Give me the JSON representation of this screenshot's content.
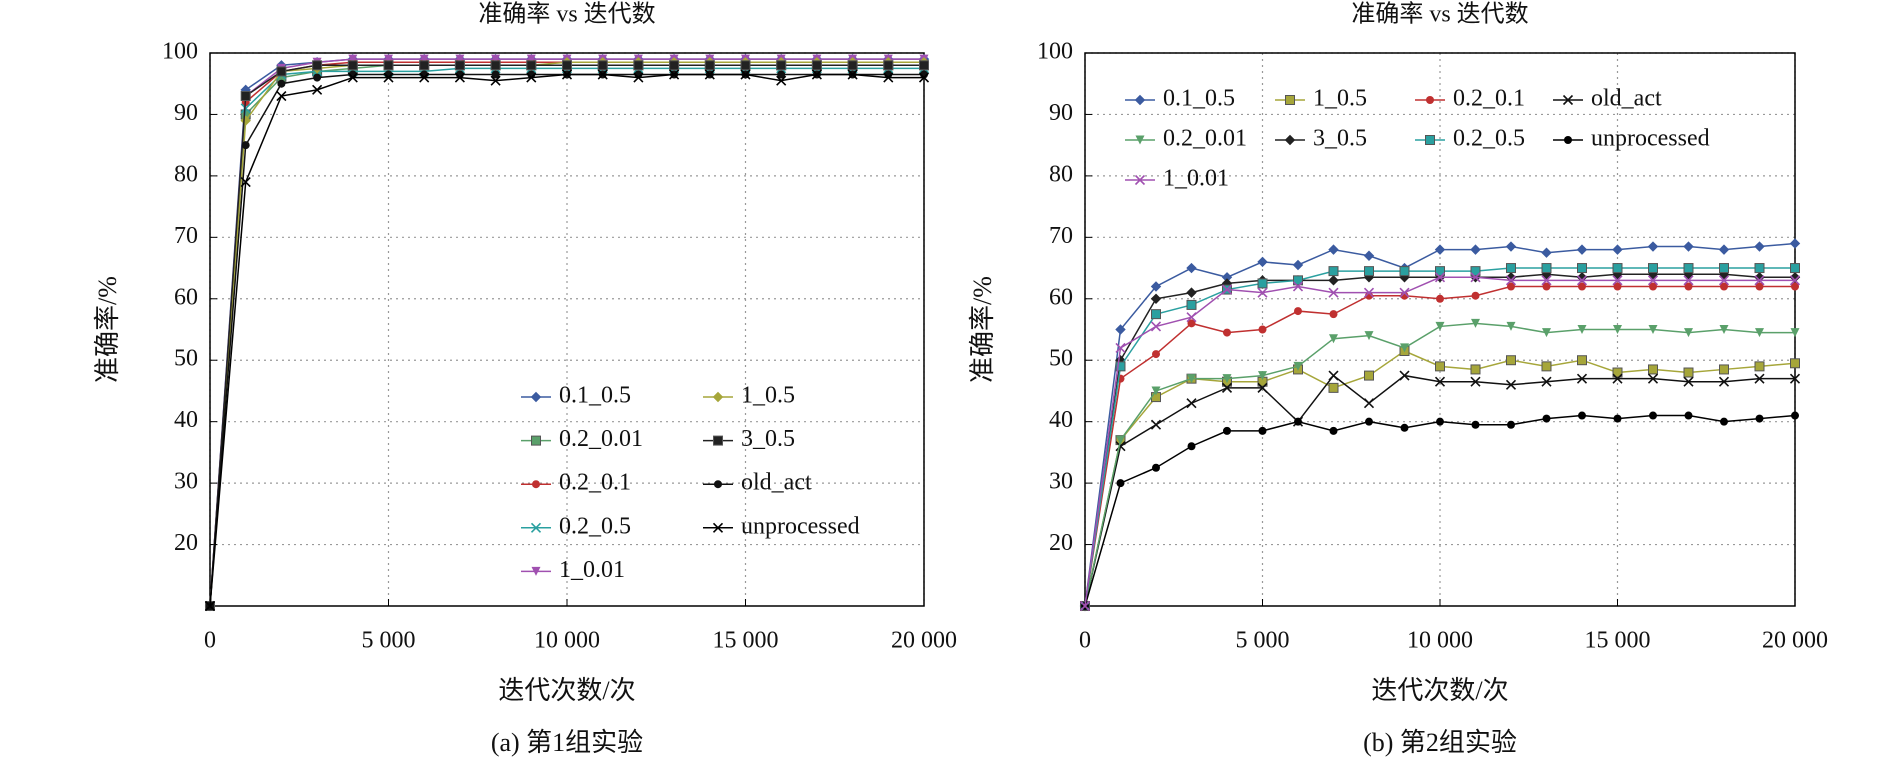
{
  "chart_data": [
    {
      "type": "line",
      "title": "准确率 vs 迭代数",
      "xlabel": "迭代次数/次",
      "ylabel": "准确率/%",
      "caption": "(a) 第1组实验",
      "x": [
        0,
        1000,
        2000,
        3000,
        4000,
        5000,
        6000,
        7000,
        8000,
        9000,
        10000,
        11000,
        12000,
        13000,
        14000,
        15000,
        16000,
        17000,
        18000,
        19000,
        20000
      ],
      "xlim": [
        0,
        20000
      ],
      "ylim": [
        10,
        100
      ],
      "xticks": [
        0,
        {
          "value": 5000,
          "label": "5 000"
        },
        {
          "value": 10000,
          "label": "10 000"
        },
        {
          "value": 15000,
          "label": "15 000"
        },
        {
          "value": 20000,
          "label": "20 000"
        }
      ],
      "yticks": [
        20,
        30,
        40,
        50,
        60,
        70,
        80,
        90,
        100
      ],
      "grid": true,
      "legend_loc": "lower right",
      "series": [
        {
          "name": "0.1_0.5",
          "color": "#3b5ba0",
          "values": [
            10,
            94,
            98,
            98.5,
            99,
            99,
            99,
            99,
            99,
            99,
            99,
            99,
            99,
            99,
            99,
            99,
            99,
            99,
            99,
            99,
            99
          ]
        },
        {
          "name": "0.2_0.01",
          "color": "#5aa06a",
          "values": [
            10,
            90,
            96,
            97,
            97.5,
            98,
            98,
            98,
            98,
            98,
            98,
            98,
            98,
            98,
            98,
            98,
            98,
            98,
            98,
            98,
            98
          ]
        },
        {
          "name": "0.2_0.1",
          "color": "#c03030",
          "values": [
            10,
            92,
            97,
            98,
            98.5,
            98.5,
            98.5,
            98.5,
            98.5,
            98.5,
            98.5,
            98.5,
            98.5,
            98.5,
            98.5,
            98.5,
            98.5,
            98.5,
            98.5,
            98.5,
            98.5
          ]
        },
        {
          "name": "0.2_0.5",
          "color": "#2aa0a0",
          "values": [
            10,
            91,
            96.5,
            97,
            97,
            97,
            97,
            97.5,
            97.5,
            97.5,
            97.5,
            97.5,
            97.5,
            97.5,
            97.5,
            97.5,
            97.5,
            97.5,
            97.5,
            97.5,
            97.5
          ]
        },
        {
          "name": "1_0.01",
          "color": "#a050b0",
          "values": [
            10,
            93,
            97.5,
            98.5,
            99,
            99,
            99,
            99,
            99,
            99,
            99,
            99,
            99,
            99,
            99,
            99,
            99,
            99,
            99,
            99,
            99
          ]
        },
        {
          "name": "1_0.5",
          "color": "#a6a63a",
          "values": [
            10,
            89,
            97,
            97.5,
            98,
            98,
            98,
            98,
            98,
            98,
            98.5,
            98.5,
            98.5,
            98.5,
            98.5,
            98.5,
            98.5,
            98.5,
            98.5,
            98.5,
            98.5
          ]
        },
        {
          "name": "3_0.5",
          "color": "#222222",
          "values": [
            10,
            93,
            97,
            98,
            98,
            98,
            98,
            98,
            98,
            98,
            98,
            98,
            98,
            98,
            98,
            98,
            98,
            98,
            98,
            98,
            98
          ]
        },
        {
          "name": "old_act",
          "color": "#111111",
          "values": [
            10,
            85,
            95,
            96,
            96.5,
            96.5,
            96.5,
            96.5,
            96.5,
            96.5,
            96.5,
            96.5,
            96.5,
            96.5,
            96.5,
            96.5,
            96.5,
            96.5,
            96.5,
            96.5,
            96.5
          ]
        },
        {
          "name": "unprocessed",
          "color": "#000000",
          "values": [
            10,
            79,
            93,
            94,
            96,
            96,
            96,
            96,
            95.5,
            96,
            96.5,
            96.5,
            96,
            96.5,
            96.5,
            96.5,
            95.5,
            96.5,
            96.5,
            96,
            96
          ]
        }
      ]
    },
    {
      "type": "line",
      "title": "准确率 vs 迭代数",
      "xlabel": "迭代次数/次",
      "ylabel": "准确率/%",
      "caption": "(b) 第2组实验",
      "x": [
        0,
        1000,
        2000,
        3000,
        4000,
        5000,
        6000,
        7000,
        8000,
        9000,
        10000,
        11000,
        12000,
        13000,
        14000,
        15000,
        16000,
        17000,
        18000,
        19000,
        20000
      ],
      "xlim": [
        0,
        20000
      ],
      "ylim": [
        10,
        100
      ],
      "xticks": [
        0,
        {
          "value": 5000,
          "label": "5 000"
        },
        {
          "value": 10000,
          "label": "10 000"
        },
        {
          "value": 15000,
          "label": "15 000"
        },
        {
          "value": 20000,
          "label": "20 000"
        }
      ],
      "yticks": [
        20,
        30,
        40,
        50,
        60,
        70,
        80,
        90,
        100
      ],
      "grid": true,
      "legend_loc": "upper left",
      "series": [
        {
          "name": "0.1_0.5",
          "color": "#3b5ba0",
          "values": [
            10,
            55,
            62,
            65,
            63.5,
            66,
            65.5,
            68,
            67,
            65,
            68,
            68,
            68.5,
            67.5,
            68,
            68,
            68.5,
            68.5,
            68,
            68.5,
            69
          ]
        },
        {
          "name": "1_0.5",
          "color": "#a6a63a",
          "values": [
            10,
            37,
            44,
            47,
            46.5,
            46.5,
            48.5,
            45.5,
            47.5,
            51.5,
            49,
            48.5,
            50,
            49,
            50,
            48,
            48.5,
            48,
            48.5,
            49,
            49.5
          ]
        },
        {
          "name": "0.2_0.1",
          "color": "#c03030",
          "values": [
            10,
            47,
            51,
            56,
            54.5,
            55,
            58,
            57.5,
            60.5,
            60.5,
            60,
            60.5,
            62,
            62,
            62,
            62,
            62,
            62,
            62,
            62,
            62
          ]
        },
        {
          "name": "old_act",
          "color": "#111111",
          "values": [
            10,
            36,
            39.5,
            43,
            45.5,
            45.5,
            40,
            47.5,
            43,
            47.5,
            46.5,
            46.5,
            46,
            46.5,
            47,
            47,
            47,
            46.5,
            46.5,
            47,
            47
          ]
        },
        {
          "name": "0.2_0.01",
          "color": "#5aa06a",
          "values": [
            10,
            37,
            45,
            47,
            47,
            47.5,
            49,
            53.5,
            54,
            52,
            55.5,
            56,
            55.5,
            54.5,
            55,
            55,
            55,
            54.5,
            55,
            54.5,
            54.5
          ]
        },
        {
          "name": "3_0.5",
          "color": "#222222",
          "values": [
            10,
            50,
            60,
            61,
            62.5,
            63,
            63,
            63,
            63.5,
            63.5,
            63.5,
            63.5,
            63.5,
            64,
            63.5,
            64,
            64,
            64,
            64,
            63.5,
            63.5
          ]
        },
        {
          "name": "0.2_0.5",
          "color": "#2aa0a0",
          "values": [
            10,
            49,
            57.5,
            59,
            61.5,
            62.5,
            63,
            64.5,
            64.5,
            64.5,
            64.5,
            64.5,
            65,
            65,
            65,
            65,
            65,
            65,
            65,
            65,
            65
          ]
        },
        {
          "name": "unprocessed",
          "color": "#000000",
          "values": [
            10,
            30,
            32.5,
            36,
            38.5,
            38.5,
            40,
            38.5,
            40,
            39,
            40,
            39.5,
            39.5,
            40.5,
            41,
            40.5,
            41,
            41,
            40,
            40.5,
            41
          ]
        },
        {
          "name": "1_0.01",
          "color": "#a050b0",
          "values": [
            10,
            52,
            55.5,
            57,
            61.5,
            61,
            62,
            61,
            61,
            61,
            63.5,
            63.5,
            63,
            63,
            63,
            63,
            63,
            63,
            63,
            63,
            63
          ]
        }
      ]
    }
  ]
}
